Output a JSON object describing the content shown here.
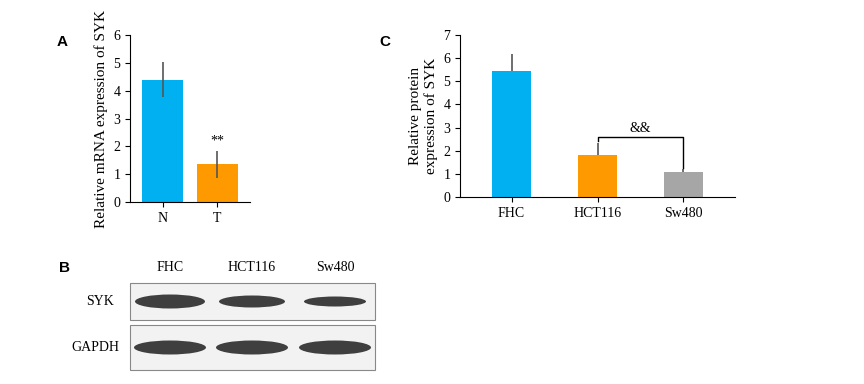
{
  "chart_data": [
    {
      "type": "bar",
      "title": "A",
      "ylabel": "Relative mRNA expression of SYK",
      "categories": [
        "N",
        "T"
      ],
      "values": [
        4.4,
        1.35
      ],
      "errors": [
        0.62,
        0.5
      ],
      "colors": [
        "#00b0f0",
        "#ff9900"
      ],
      "ylim": [
        0,
        6
      ],
      "yticks": [
        0,
        1,
        2,
        3,
        4,
        5,
        6
      ],
      "annotations": [
        {
          "text": "**",
          "category": "T"
        }
      ]
    },
    {
      "type": "bar",
      "title": "C",
      "ylabel": "Relative protein\nexpression of SYK",
      "categories": [
        "FHC",
        "HCT116",
        "Sw480"
      ],
      "values": [
        5.45,
        1.8,
        1.1
      ],
      "errors_upper": [
        0.75,
        0.55,
        0.1
      ],
      "colors": [
        "#00b0f0",
        "#ff9900",
        "#a6a6a6"
      ],
      "ylim": [
        0,
        7
      ],
      "yticks": [
        0,
        1,
        2,
        3,
        4,
        5,
        6,
        7
      ],
      "annotations": [
        {
          "text": "&&",
          "between": [
            "HCT116",
            "Sw480"
          ]
        }
      ]
    }
  ],
  "blot": {
    "title": "B",
    "lanes": [
      "FHC",
      "HCT116",
      "Sw480"
    ],
    "rows": [
      "SYK",
      "GAPDH"
    ]
  }
}
